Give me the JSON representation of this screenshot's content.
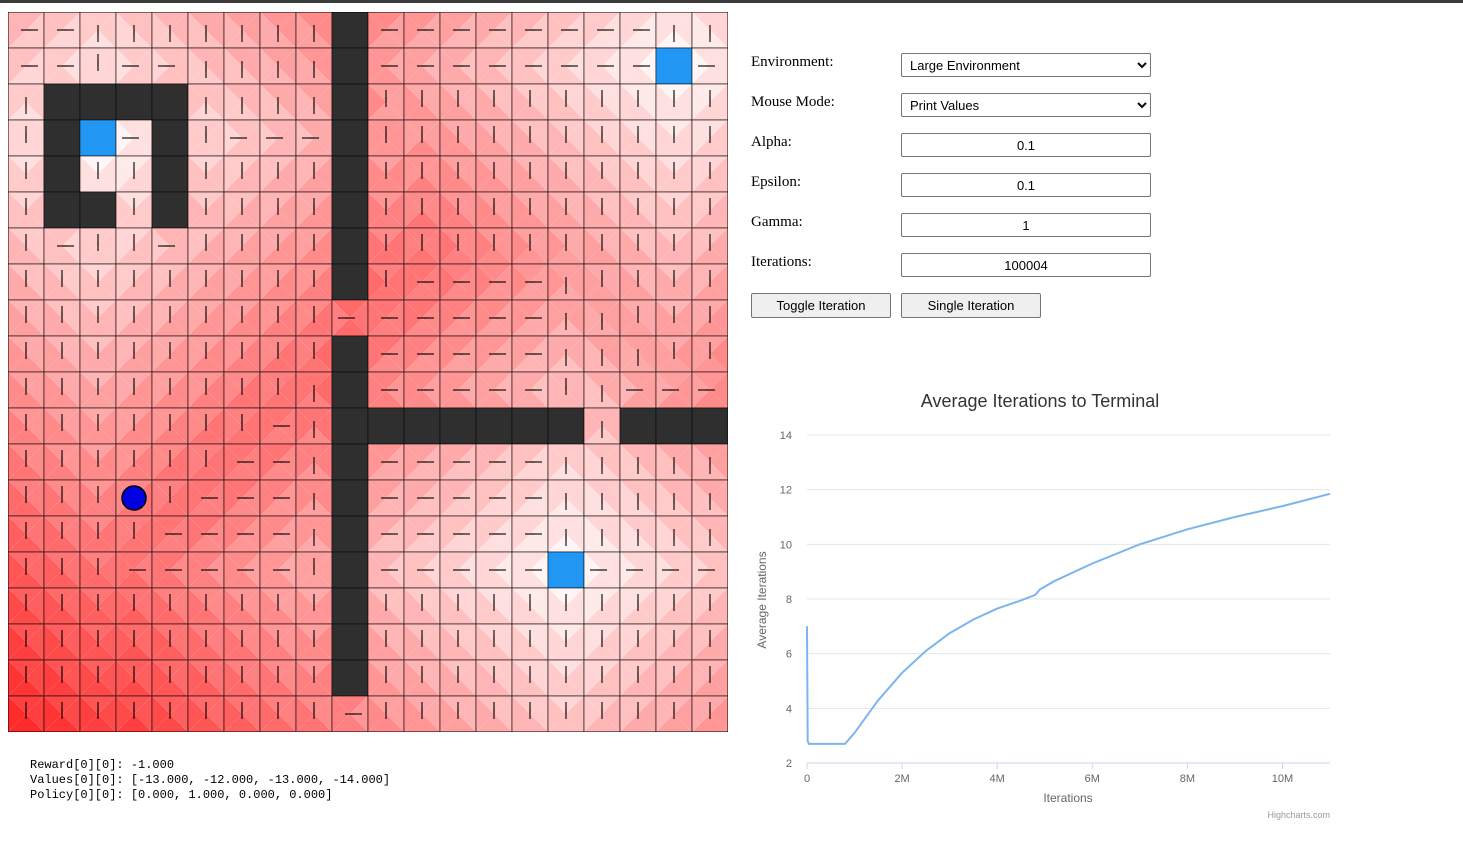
{
  "grid": {
    "rows": 20,
    "cols": 20,
    "colors": {
      "wall": "#2f2f2f",
      "goal": "#2196f3",
      "agent": "#0000e0",
      "hot": "#ff0000",
      "cold": "#ffffff"
    },
    "walls": [
      [
        0,
        9
      ],
      [
        1,
        9
      ],
      [
        2,
        9
      ],
      [
        3,
        9
      ],
      [
        4,
        9
      ],
      [
        5,
        9
      ],
      [
        6,
        9
      ],
      [
        7,
        9
      ],
      [
        9,
        9
      ],
      [
        10,
        9
      ],
      [
        11,
        9
      ],
      [
        12,
        9
      ],
      [
        13,
        9
      ],
      [
        14,
        9
      ],
      [
        15,
        9
      ],
      [
        16,
        9
      ],
      [
        17,
        9
      ],
      [
        18,
        9
      ],
      [
        2,
        1
      ],
      [
        2,
        2
      ],
      [
        2,
        3
      ],
      [
        2,
        4
      ],
      [
        3,
        1
      ],
      [
        3,
        4
      ],
      [
        4,
        1
      ],
      [
        4,
        4
      ],
      [
        5,
        1
      ],
      [
        5,
        2
      ],
      [
        5,
        4
      ],
      [
        11,
        10
      ],
      [
        11,
        11
      ],
      [
        11,
        12
      ],
      [
        11,
        13
      ],
      [
        11,
        14
      ],
      [
        11,
        15
      ],
      [
        11,
        17
      ],
      [
        11,
        18
      ],
      [
        11,
        19
      ]
    ],
    "goals": [
      [
        1,
        18
      ],
      [
        3,
        2
      ],
      [
        15,
        15
      ]
    ],
    "agent": [
      13,
      3
    ]
  },
  "debug": {
    "reward": "Reward[0][0]: -1.000",
    "values": "Values[0][0]: [-13.000, -12.000, -13.000, -14.000]",
    "policy": "Policy[0][0]: [0.000, 1.000, 0.000, 0.000]"
  },
  "controls": {
    "environment_label": "Environment:",
    "environment_value": "Large Environment",
    "mouse_mode_label": "Mouse Mode:",
    "mouse_mode_value": "Print Values",
    "alpha_label": "Alpha:",
    "alpha_value": "0.1",
    "epsilon_label": "Epsilon:",
    "epsilon_value": "0.1",
    "gamma_label": "Gamma:",
    "gamma_value": "1",
    "iterations_label": "Iterations:",
    "iterations_value": "100004",
    "toggle_label": "Toggle Iteration",
    "single_label": "Single Iteration"
  },
  "chart_data": {
    "type": "line",
    "title": "Average Iterations to Terminal",
    "xlabel": "Iterations",
    "ylabel": "Average Iterations",
    "xlim": [
      0,
      11000000
    ],
    "ylim": [
      2,
      14
    ],
    "xticks": [
      0,
      2000000,
      4000000,
      6000000,
      8000000,
      10000000
    ],
    "xtick_labels": [
      "0",
      "2M",
      "4M",
      "6M",
      "8M",
      "10M"
    ],
    "yticks": [
      2,
      4,
      6,
      8,
      10,
      12,
      14
    ],
    "ytick_labels": [
      "2",
      "4",
      "6",
      "8",
      "10",
      "12",
      "14"
    ],
    "grid": true,
    "color": "#7cb5ec",
    "credits": "Highcharts.com",
    "series": [
      {
        "x": [
          0,
          15000,
          40000,
          200000,
          500000,
          800000,
          1000000,
          1500000,
          2000000,
          2500000,
          3000000,
          3500000,
          4000000,
          4500000,
          4800000,
          4900000,
          5200000,
          6000000,
          7000000,
          8000000,
          9000000,
          10000000,
          11000000
        ],
        "y": [
          7.0,
          2.8,
          2.7,
          2.7,
          2.7,
          2.7,
          3.1,
          4.3,
          5.3,
          6.1,
          6.75,
          7.25,
          7.65,
          7.95,
          8.15,
          8.35,
          8.65,
          9.3,
          10.0,
          10.55,
          11.0,
          11.4,
          11.85
        ]
      }
    ]
  }
}
